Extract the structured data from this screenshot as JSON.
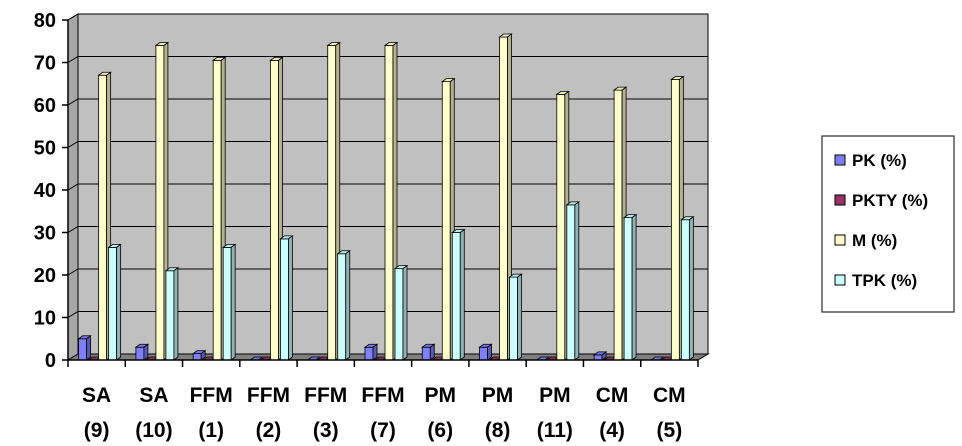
{
  "chart_data": {
    "type": "bar",
    "title": "",
    "xlabel": "",
    "ylabel": "",
    "ylim": [
      0,
      80
    ],
    "yticks": [
      0,
      10,
      20,
      30,
      40,
      50,
      60,
      70,
      80
    ],
    "grid": true,
    "legend_position": "right",
    "categories": [
      [
        "SA",
        "(9)"
      ],
      [
        "SA",
        "(10)"
      ],
      [
        "FFM",
        "(1)"
      ],
      [
        "FFM",
        "(2)"
      ],
      [
        "FFM",
        "(3)"
      ],
      [
        "FFM",
        "(7)"
      ],
      [
        "PM",
        "(6)"
      ],
      [
        "PM",
        "(8)"
      ],
      [
        "PM",
        "(11)"
      ],
      [
        "CM",
        "(4)"
      ],
      [
        "CM",
        "(5)"
      ]
    ],
    "series": [
      {
        "name": "PK (%)",
        "color": "#8080ff",
        "values": [
          5,
          3,
          1.5,
          0,
          0,
          3,
          3,
          3,
          0,
          1.2,
          0
        ]
      },
      {
        "name": "PKTY (%)",
        "color": "#993366",
        "values": [
          0,
          0,
          0,
          0,
          0,
          0,
          0,
          0,
          0,
          0,
          0
        ]
      },
      {
        "name": "M (%)",
        "color": "#ffffcc",
        "values": [
          67,
          74,
          70.5,
          70.5,
          74,
          74,
          65.5,
          76,
          62.5,
          63.5,
          66
        ]
      },
      {
        "name": "TPK (%)",
        "color": "#ccffff",
        "values": [
          26.5,
          21,
          26.5,
          28.5,
          25,
          21.5,
          30,
          19.5,
          36.5,
          33.5,
          33
        ]
      }
    ],
    "plot_background": "#c0c0c0",
    "floor_color": "#808080"
  }
}
